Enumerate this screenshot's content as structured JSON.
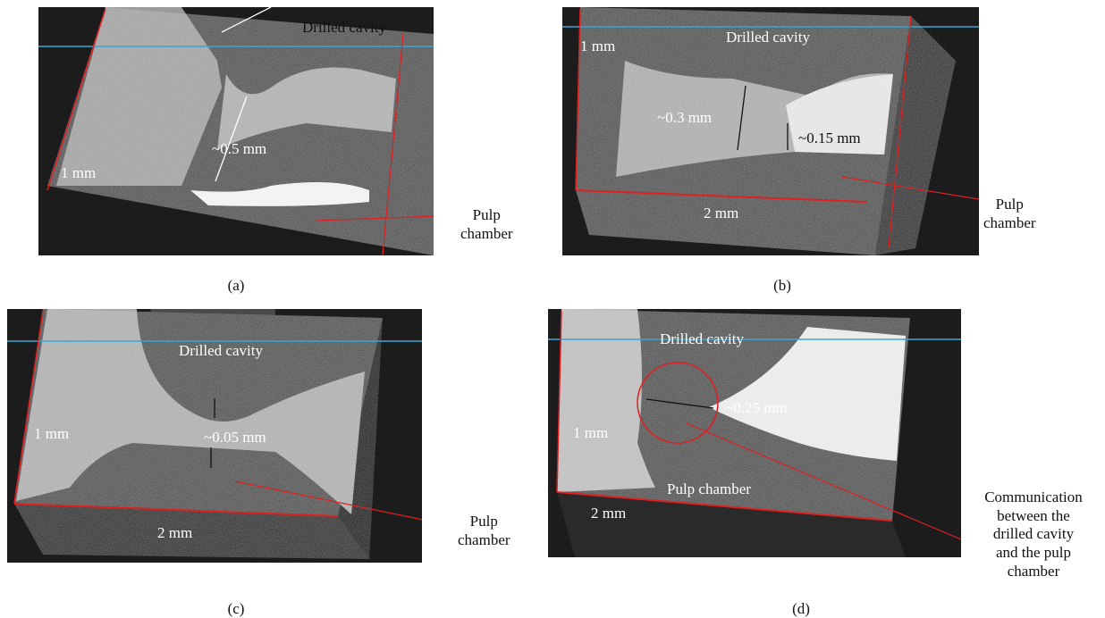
{
  "panels": {
    "a": {
      "caption": "(a)",
      "drilled_cavity": "Drilled cavity",
      "measure": "~0.5 mm",
      "scale": "1 mm",
      "pulp_chamber": "Pulp\nchamber"
    },
    "b": {
      "caption": "(b)",
      "drilled_cavity": "Drilled cavity",
      "measure1": "~0.3 mm",
      "measure2": "~0.15 mm",
      "scale_v": "1 mm",
      "scale_h": "2 mm",
      "pulp_chamber": "Pulp\nchamber"
    },
    "c": {
      "caption": "(c)",
      "drilled_cavity": "Drilled cavity",
      "measure": "~0.05 mm",
      "scale_v": "1 mm",
      "scale_h": "2 mm",
      "pulp_chamber": "Pulp\nchamber"
    },
    "d": {
      "caption": "(d)",
      "drilled_cavity": "Drilled cavity",
      "measure": "~0.25 mm",
      "scale_v": "1 mm",
      "scale_h": "2 mm",
      "pulp_chamber": "Pulp chamber",
      "communication": "Communication\nbetween the\ndrilled cavity\nand the pulp\nchamber"
    }
  },
  "colors": {
    "background": "#1c1c1c",
    "specimen_gray": "#4a4a4a",
    "tissue_white": "#e8e8e8",
    "scale_red": "#e02020",
    "plane_blue": "#3aa6d8"
  }
}
